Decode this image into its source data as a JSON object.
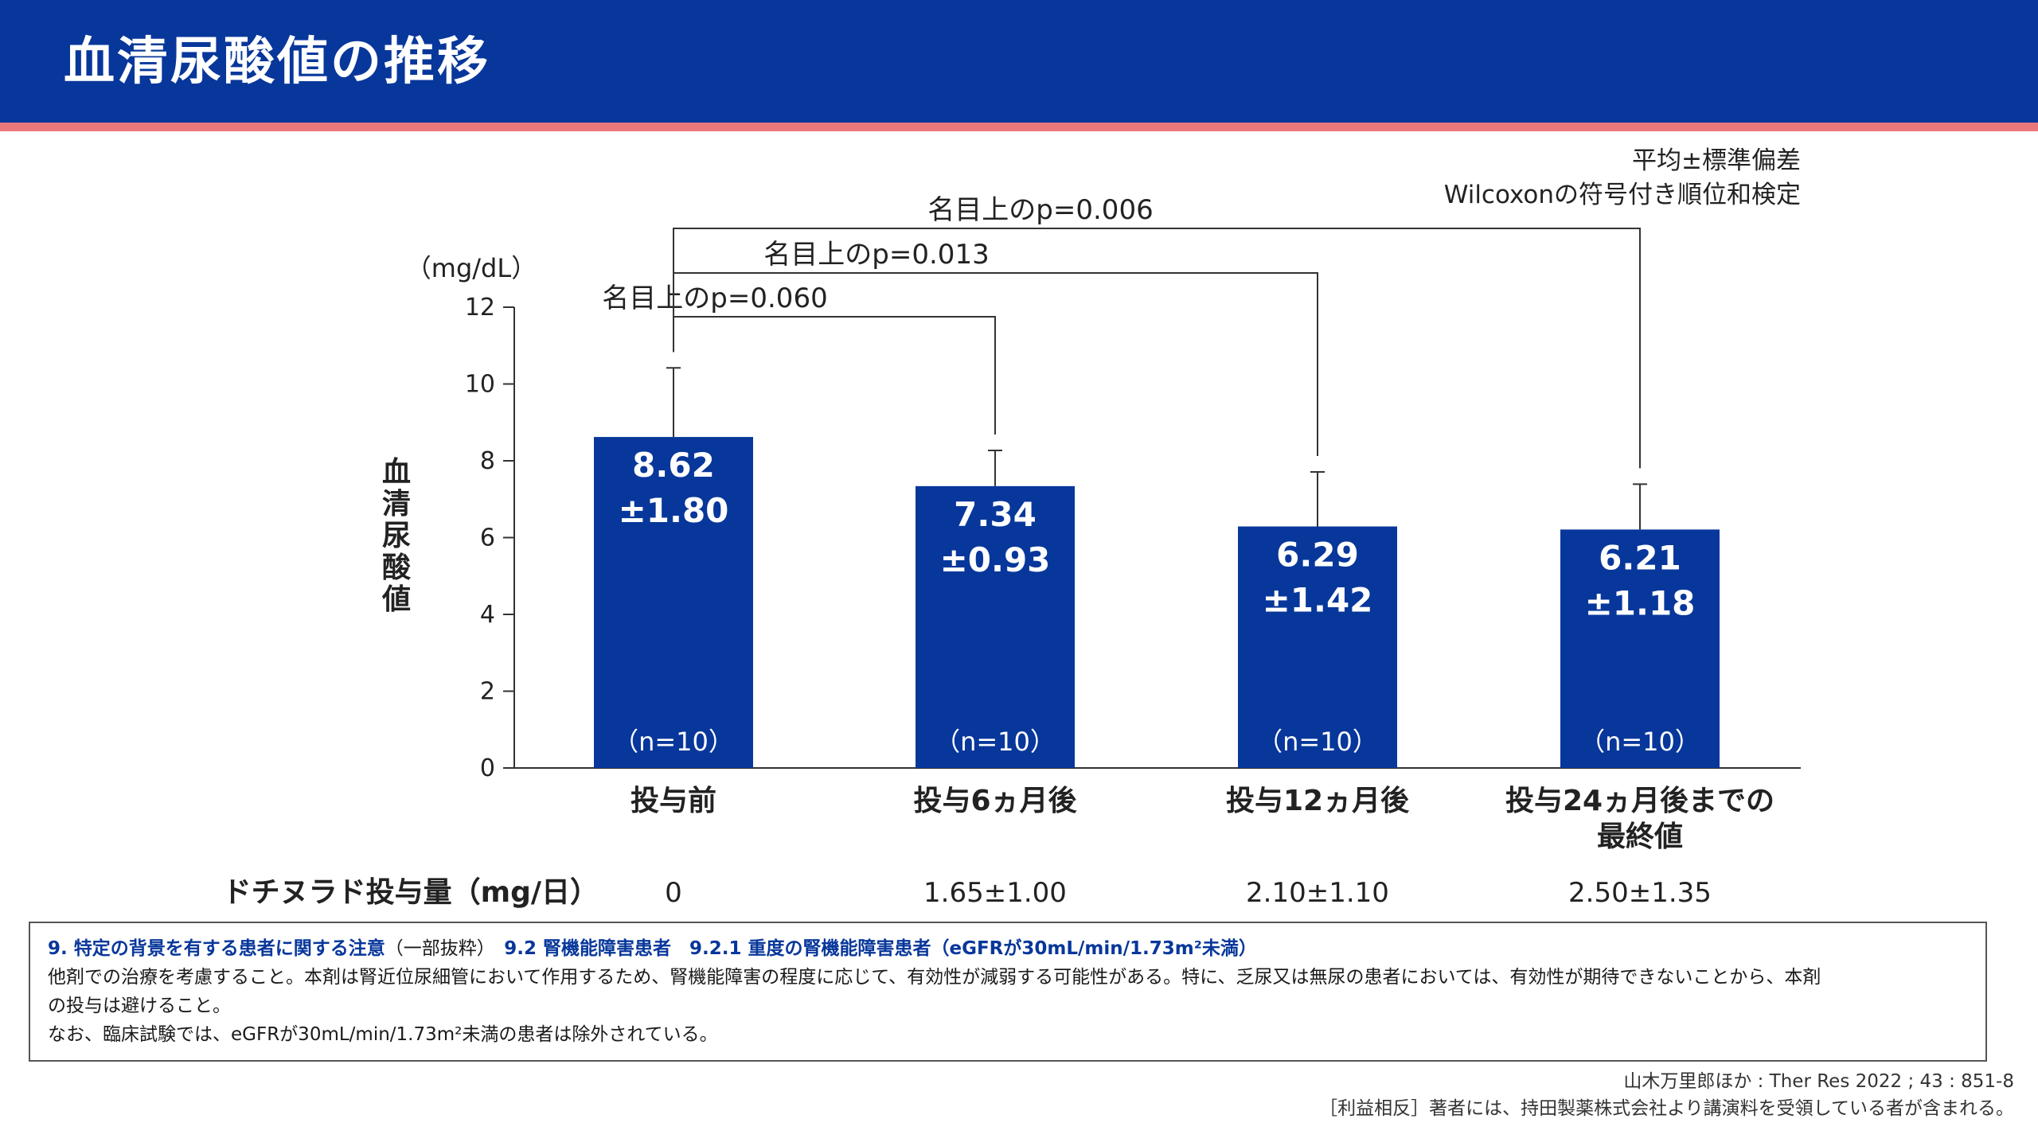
{
  "title": "血清尿酸値の推移",
  "stats_note": [
    "平均±標準偏差",
    "Wilcoxonの符号付き順位和検定"
  ],
  "chart_data": {
    "type": "bar",
    "unit": "（mg/dL）",
    "ylabel": "血清尿酸値",
    "ylim": [
      0,
      12
    ],
    "yticks": [
      0,
      2,
      4,
      6,
      8,
      10,
      12
    ],
    "categories": [
      [
        "投与前"
      ],
      [
        "投与6ヵ月後"
      ],
      [
        "投与12ヵ月後"
      ],
      [
        "投与24ヵ月後までの",
        "最終値"
      ]
    ],
    "values": [
      8.62,
      7.34,
      6.29,
      6.21
    ],
    "errors": [
      1.8,
      0.93,
      1.42,
      1.18
    ],
    "value_labels": [
      "8.62",
      "7.34",
      "6.29",
      "6.21"
    ],
    "error_labels": [
      "±1.80",
      "±0.93",
      "±1.42",
      "±1.18"
    ],
    "n_labels": [
      "（n=10）",
      "（n=10）",
      "（n=10）",
      "（n=10）"
    ],
    "comparisons": [
      {
        "from": 0,
        "to": 1,
        "label": "名目上のp=0.060"
      },
      {
        "from": 0,
        "to": 2,
        "label": "名目上のp=0.013"
      },
      {
        "from": 0,
        "to": 3,
        "label": "名目上のp=0.006"
      }
    ],
    "bar_color": "#08379b",
    "dose_row": {
      "label": "ドチヌラド投与量（mg/日）",
      "values": [
        "0",
        "1.65±1.00",
        "2.10±1.10",
        "2.50±1.35"
      ]
    }
  },
  "note": {
    "heading_bold_1": "9. 特定の背景を有する患者に関する注意",
    "heading_plain": "（一部抜粋）",
    "heading_bold_2": "9.2 腎機能障害患者　9.2.1 重度の腎機能障害患者（eGFRが30mL/min/1.73m²未満）",
    "line1": "他剤での治療を考慮すること。本剤は腎近位尿細管において作用するため、腎機能障害の程度に応じて、有効性が減弱する可能性がある。特に、乏尿又は無尿の患者においては、有効性が期待できないことから、本剤",
    "line2": "の投与は避けること。",
    "line3": "なお、臨床試験では、eGFRが30mL/min/1.73m²未満の患者は除外されている。"
  },
  "footer": {
    "citation": "山木万里郎ほか : Ther Res 2022 ; 43 : 851-8",
    "coi": "［利益相反］著者には、持田製薬株式会社より講演料を受領している者が含まれる。"
  }
}
